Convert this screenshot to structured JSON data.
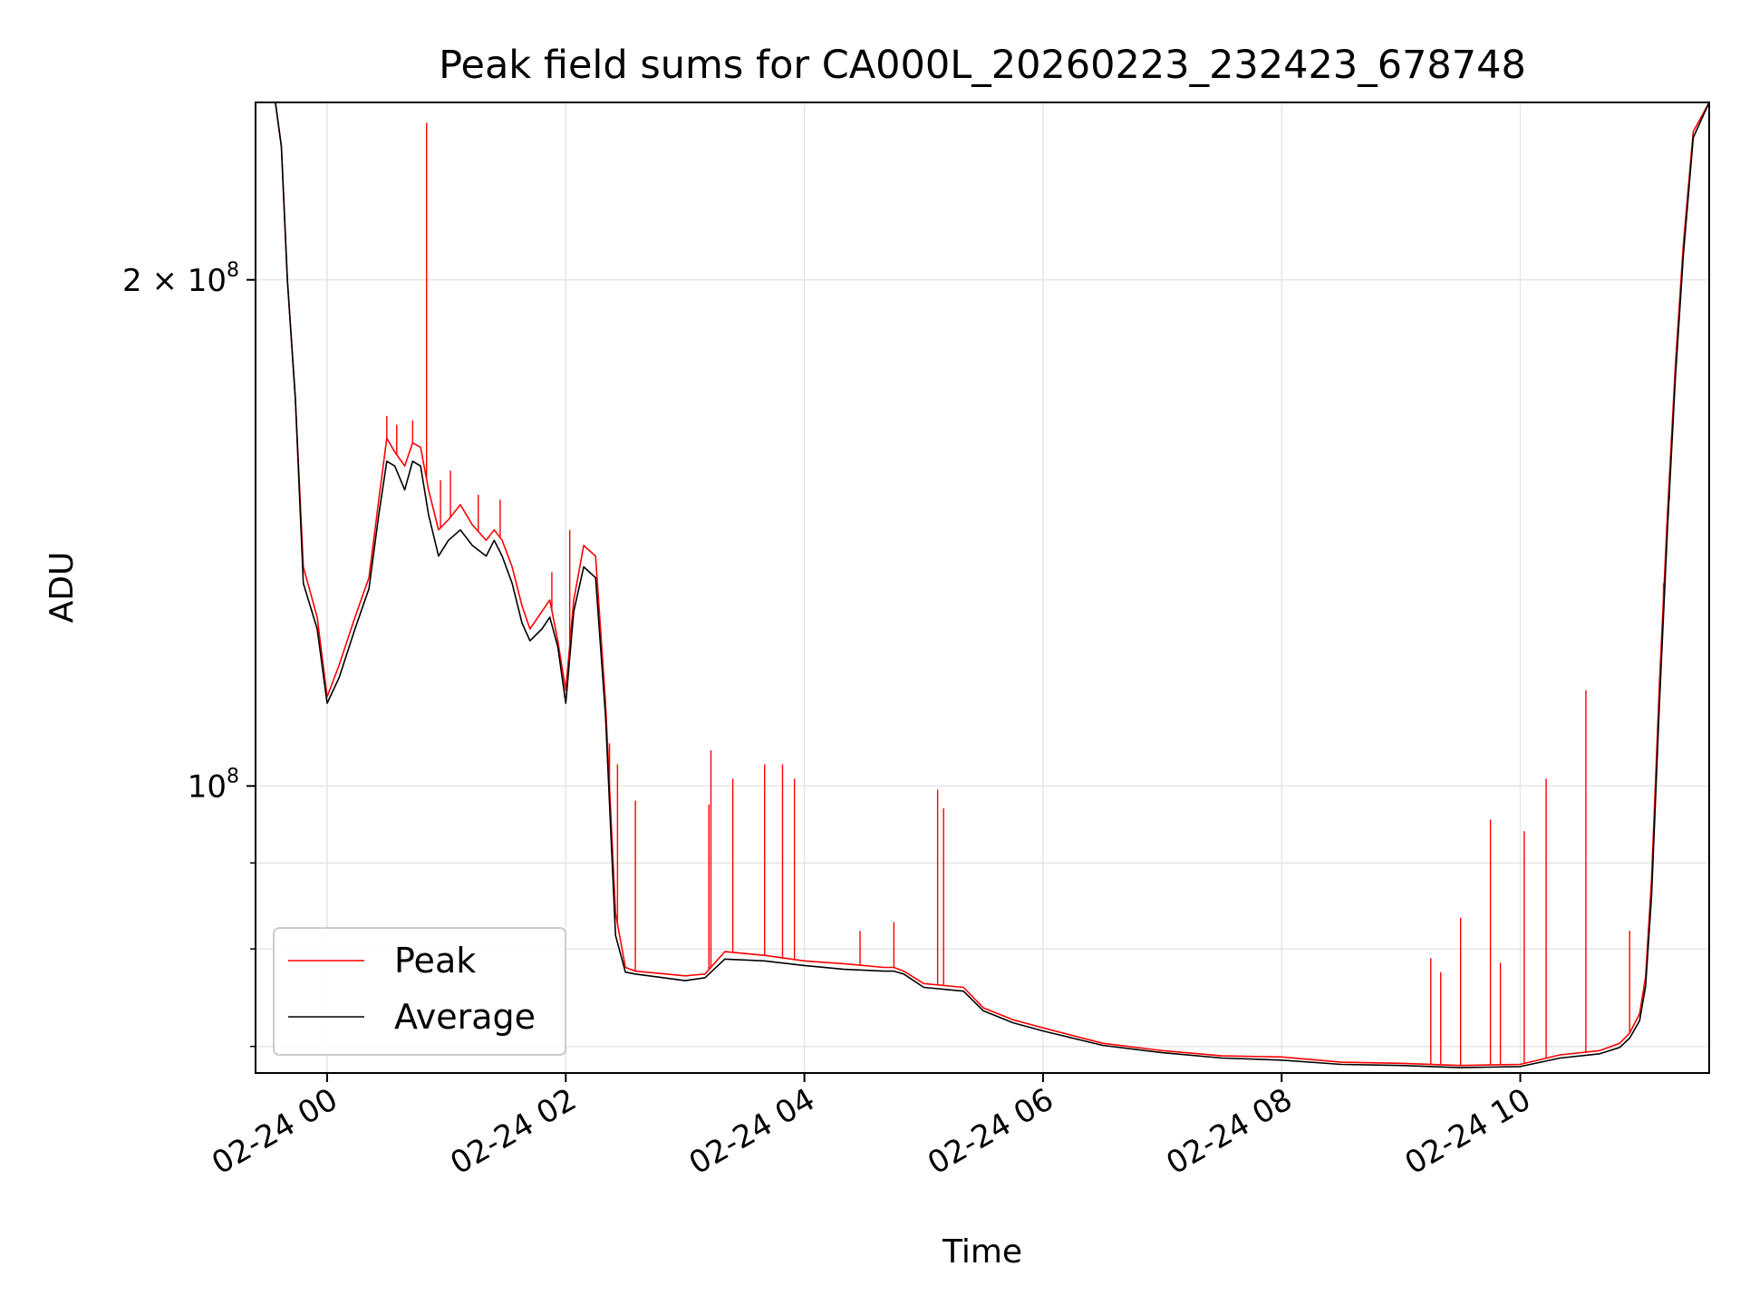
{
  "chart_data": {
    "type": "line",
    "title": "Peak field sums for CA000L_20260223_232423_678748",
    "xlabel": "Time",
    "ylabel": "ADU",
    "x_axis": {
      "type": "datetime",
      "range": [
        "2026-02-23T23:24",
        "2026-02-24T11:35"
      ],
      "ticks": [
        "2026-02-24T00:00",
        "2026-02-24T02:00",
        "2026-02-24T04:00",
        "2026-02-24T06:00",
        "2026-02-24T08:00",
        "2026-02-24T10:00"
      ],
      "tick_labels": [
        "02-24 00",
        "02-24 02",
        "02-24 04",
        "02-24 06",
        "02-24 08",
        "02-24 10"
      ]
    },
    "y_axis": {
      "scale": "log",
      "range": [
        67500000,
        255000000
      ],
      "major_ticks": [
        100000000,
        200000000
      ],
      "major_tick_labels": [
        {
          "mantissa": "",
          "base": "10",
          "exp": "8"
        },
        {
          "mantissa": "2 × ",
          "base": "10",
          "exp": "8"
        }
      ],
      "minor_ticks": [
        70000000,
        80000000,
        90000000
      ]
    },
    "grid": true,
    "legend": {
      "position": "lower-left",
      "entries": [
        "Peak",
        "Average"
      ]
    },
    "colors": {
      "peak": "#ff0000",
      "average": "#000000",
      "grid": "#e6e6e6"
    },
    "series": [
      {
        "name": "Peak",
        "color": "#ff0000",
        "x": [
          "2026-02-23T23:24",
          "2026-02-23T23:34",
          "2026-02-23T23:37",
          "2026-02-23T23:40",
          "2026-02-23T23:44",
          "2026-02-23T23:48",
          "2026-02-23T23:55",
          "2026-02-24T00:00",
          "2026-02-24T00:06",
          "2026-02-24T00:14",
          "2026-02-24T00:21",
          "2026-02-24T00:26",
          "2026-02-24T00:30",
          "2026-02-24T00:34",
          "2026-02-24T00:39",
          "2026-02-24T00:43",
          "2026-02-24T00:47",
          "2026-02-24T00:51",
          "2026-02-24T00:56",
          "2026-02-24T01:01",
          "2026-02-24T01:07",
          "2026-02-24T01:13",
          "2026-02-24T01:20",
          "2026-02-24T01:24",
          "2026-02-24T01:28",
          "2026-02-24T01:33",
          "2026-02-24T01:38",
          "2026-02-24T01:42",
          "2026-02-24T01:48",
          "2026-02-24T01:52",
          "2026-02-24T01:56",
          "2026-02-24T02:00",
          "2026-02-24T02:04",
          "2026-02-24T02:09",
          "2026-02-24T02:15",
          "2026-02-24T02:20",
          "2026-02-24T02:25",
          "2026-02-24T02:30",
          "2026-02-24T02:35",
          "2026-02-24T03:00",
          "2026-02-24T03:10",
          "2026-02-24T03:20",
          "2026-02-24T03:40",
          "2026-02-24T04:00",
          "2026-02-24T04:20",
          "2026-02-24T04:40",
          "2026-02-24T04:45",
          "2026-02-24T04:50",
          "2026-02-24T05:00",
          "2026-02-24T05:20",
          "2026-02-24T05:30",
          "2026-02-24T05:45",
          "2026-02-24T06:00",
          "2026-02-24T06:30",
          "2026-02-24T07:00",
          "2026-02-24T07:30",
          "2026-02-24T08:00",
          "2026-02-24T08:30",
          "2026-02-24T09:00",
          "2026-02-24T09:30",
          "2026-02-24T10:00",
          "2026-02-24T10:20",
          "2026-02-24T10:40",
          "2026-02-24T10:50",
          "2026-02-24T10:55",
          "2026-02-24T11:00",
          "2026-02-24T11:03",
          "2026-02-24T11:06",
          "2026-02-24T11:10",
          "2026-02-24T11:14",
          "2026-02-24T11:18",
          "2026-02-24T11:22",
          "2026-02-24T11:27",
          "2026-02-24T11:35"
        ],
        "y": [
          255000000,
          255000000,
          240000000,
          200000000,
          170000000,
          135000000,
          126000000,
          113000000,
          118000000,
          126000000,
          133000000,
          148000000,
          161000000,
          158000000,
          155000000,
          160000000,
          159000000,
          150000000,
          142000000,
          144000000,
          147000000,
          143000000,
          140000000,
          142000000,
          140000000,
          135000000,
          128000000,
          124000000,
          127000000,
          129000000,
          122000000,
          114000000,
          129000000,
          139000000,
          137000000,
          112000000,
          84000000,
          78000000,
          77600000,
          77100000,
          77300000,
          79700000,
          79300000,
          78700000,
          78400000,
          78000000,
          78000000,
          77600000,
          76300000,
          75900000,
          73800000,
          72600000,
          71800000,
          70300000,
          69600000,
          69100000,
          69000000,
          68500000,
          68400000,
          68200000,
          68300000,
          69200000,
          69600000,
          70300000,
          71300000,
          73200000,
          77000000,
          88000000,
          115000000,
          145000000,
          178000000,
          210000000,
          245000000,
          255000000
        ],
        "spikes": [
          {
            "x": "2026-02-24T00:50",
            "y": 248000000
          },
          {
            "x": "2026-02-24T00:43",
            "y": 165000000
          },
          {
            "x": "2026-02-24T00:30",
            "y": 166000000
          },
          {
            "x": "2026-02-24T00:35",
            "y": 164000000
          },
          {
            "x": "2026-02-24T00:57",
            "y": 152000000
          },
          {
            "x": "2026-02-24T01:02",
            "y": 154000000
          },
          {
            "x": "2026-02-24T01:16",
            "y": 149000000
          },
          {
            "x": "2026-02-24T01:27",
            "y": 148000000
          },
          {
            "x": "2026-02-24T01:53",
            "y": 134000000
          },
          {
            "x": "2026-02-24T02:02",
            "y": 142000000
          },
          {
            "x": "2026-02-24T02:22",
            "y": 106000000
          },
          {
            "x": "2026-02-24T02:26",
            "y": 103000000
          },
          {
            "x": "2026-02-24T02:35",
            "y": 98000000
          },
          {
            "x": "2026-02-24T03:12",
            "y": 97500000
          },
          {
            "x": "2026-02-24T03:13",
            "y": 105000000
          },
          {
            "x": "2026-02-24T03:24",
            "y": 101000000
          },
          {
            "x": "2026-02-24T03:40",
            "y": 103000000
          },
          {
            "x": "2026-02-24T03:49",
            "y": 103000000
          },
          {
            "x": "2026-02-24T03:55",
            "y": 101000000
          },
          {
            "x": "2026-02-24T04:28",
            "y": 82000000
          },
          {
            "x": "2026-02-24T04:45",
            "y": 83000000
          },
          {
            "x": "2026-02-24T05:07",
            "y": 99500000
          },
          {
            "x": "2026-02-24T05:10",
            "y": 97000000
          },
          {
            "x": "2026-02-24T09:15",
            "y": 79000000
          },
          {
            "x": "2026-02-24T09:20",
            "y": 77500000
          },
          {
            "x": "2026-02-24T09:30",
            "y": 83500000
          },
          {
            "x": "2026-02-24T09:45",
            "y": 95500000
          },
          {
            "x": "2026-02-24T09:50",
            "y": 78500000
          },
          {
            "x": "2026-02-24T10:02",
            "y": 94000000
          },
          {
            "x": "2026-02-24T10:13",
            "y": 101000000
          },
          {
            "x": "2026-02-24T10:33",
            "y": 114000000
          },
          {
            "x": "2026-02-24T10:55",
            "y": 82000000
          },
          {
            "x": "2026-02-24T11:12",
            "y": 132000000
          },
          {
            "x": "2026-02-24T11:15",
            "y": 148000000
          }
        ]
      },
      {
        "name": "Average",
        "color": "#000000",
        "x": [
          "2026-02-23T23:24",
          "2026-02-23T23:34",
          "2026-02-23T23:37",
          "2026-02-23T23:40",
          "2026-02-23T23:44",
          "2026-02-23T23:48",
          "2026-02-23T23:55",
          "2026-02-24T00:00",
          "2026-02-24T00:06",
          "2026-02-24T00:14",
          "2026-02-24T00:21",
          "2026-02-24T00:26",
          "2026-02-24T00:30",
          "2026-02-24T00:34",
          "2026-02-24T00:39",
          "2026-02-24T00:43",
          "2026-02-24T00:47",
          "2026-02-24T00:51",
          "2026-02-24T00:56",
          "2026-02-24T01:01",
          "2026-02-24T01:07",
          "2026-02-24T01:13",
          "2026-02-24T01:20",
          "2026-02-24T01:24",
          "2026-02-24T01:28",
          "2026-02-24T01:33",
          "2026-02-24T01:38",
          "2026-02-24T01:42",
          "2026-02-24T01:48",
          "2026-02-24T01:52",
          "2026-02-24T01:56",
          "2026-02-24T02:00",
          "2026-02-24T02:04",
          "2026-02-24T02:09",
          "2026-02-24T02:15",
          "2026-02-24T02:20",
          "2026-02-24T02:25",
          "2026-02-24T02:30",
          "2026-02-24T02:35",
          "2026-02-24T03:00",
          "2026-02-24T03:10",
          "2026-02-24T03:20",
          "2026-02-24T03:40",
          "2026-02-24T04:00",
          "2026-02-24T04:20",
          "2026-02-24T04:40",
          "2026-02-24T04:45",
          "2026-02-24T04:50",
          "2026-02-24T05:00",
          "2026-02-24T05:20",
          "2026-02-24T05:30",
          "2026-02-24T05:45",
          "2026-02-24T06:00",
          "2026-02-24T06:30",
          "2026-02-24T07:00",
          "2026-02-24T07:30",
          "2026-02-24T08:00",
          "2026-02-24T08:30",
          "2026-02-24T09:00",
          "2026-02-24T09:30",
          "2026-02-24T10:00",
          "2026-02-24T10:20",
          "2026-02-24T10:40",
          "2026-02-24T10:50",
          "2026-02-24T10:55",
          "2026-02-24T11:00",
          "2026-02-24T11:03",
          "2026-02-24T11:06",
          "2026-02-24T11:10",
          "2026-02-24T11:14",
          "2026-02-24T11:18",
          "2026-02-24T11:22",
          "2026-02-24T11:27",
          "2026-02-24T11:35"
        ],
        "y": [
          255000000,
          255000000,
          240000000,
          200000000,
          170000000,
          132000000,
          124000000,
          112000000,
          116000000,
          124000000,
          131000000,
          145000000,
          156000000,
          155000000,
          150000000,
          156000000,
          155000000,
          145000000,
          137000000,
          140000000,
          142000000,
          139000000,
          137000000,
          140000000,
          137000000,
          132000000,
          125000000,
          122000000,
          124000000,
          126000000,
          121000000,
          112000000,
          127000000,
          135000000,
          133000000,
          110000000,
          81500000,
          77500000,
          77300000,
          76600000,
          76900000,
          78900000,
          78700000,
          78200000,
          77800000,
          77600000,
          77600000,
          77300000,
          75900000,
          75500000,
          73500000,
          72300000,
          71500000,
          70100000,
          69400000,
          68900000,
          68700000,
          68300000,
          68200000,
          68000000,
          68100000,
          68900000,
          69300000,
          69900000,
          70800000,
          72500000,
          76000000,
          86000000,
          112000000,
          142000000,
          175000000,
          207000000,
          243000000,
          255000000
        ]
      }
    ]
  }
}
